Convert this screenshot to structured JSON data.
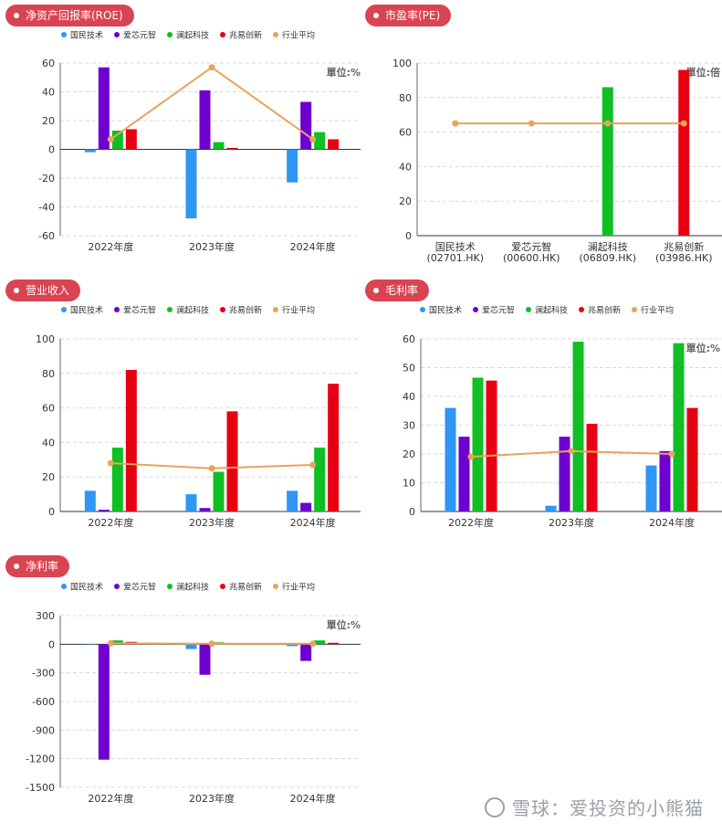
{
  "colors": {
    "国民技术": "#2f96f3",
    "爱芯元智": "#6e00d0",
    "澜起科技": "#0fbf23",
    "兆易创新": "#e60012",
    "行业平均": "#e8a45a",
    "badge": "#d94452"
  },
  "legend": [
    "国民技术",
    "爱芯元智",
    "澜起科技",
    "兆易创新",
    "行业平均"
  ],
  "watermark": "雪球：爱投资的小熊猫",
  "charts": [
    {
      "id": "roe",
      "title": "净资产回报率(ROE)",
      "unit": "單位:%",
      "type": "bar+line",
      "categories": [
        "2022年度",
        "2023年度",
        "2024年度"
      ],
      "ylim": [
        -60,
        60
      ],
      "yticks": [
        60,
        40,
        20,
        0,
        -20,
        -40,
        -60
      ],
      "series": [
        {
          "name": "国民技术",
          "values": [
            -2,
            -48,
            -23
          ]
        },
        {
          "name": "爱芯元智",
          "values": [
            57,
            41,
            33
          ]
        },
        {
          "name": "澜起科技",
          "values": [
            13,
            5,
            12
          ]
        },
        {
          "name": "兆易创新",
          "values": [
            14,
            1,
            7
          ]
        }
      ],
      "line": {
        "name": "行业平均",
        "values": [
          7,
          57,
          7
        ]
      }
    },
    {
      "id": "pe",
      "title": "市盈率(PE)",
      "unit": "單位:倍",
      "type": "bar+line",
      "categories": [
        "国民技术|(02701.HK)",
        "爱芯元智|(00600.HK)",
        "澜起科技|(06809.HK)",
        "兆易创新|(03986.HK)"
      ],
      "ylim": [
        0,
        100
      ],
      "yticks": [
        100,
        80,
        60,
        40,
        20,
        0
      ],
      "bars": [
        {
          "name": "国民技术",
          "value": 0
        },
        {
          "name": "爱芯元智",
          "value": 0
        },
        {
          "name": "澜起科技",
          "value": 86
        },
        {
          "name": "兆易创新",
          "value": 96
        }
      ],
      "line": {
        "name": "行业平均",
        "values": [
          65,
          65,
          65,
          65
        ]
      }
    },
    {
      "id": "revenue",
      "title": "营业收入",
      "unit": "",
      "type": "bar+line",
      "categories": [
        "2022年度",
        "2023年度",
        "2024年度"
      ],
      "ylim": [
        0,
        100
      ],
      "yticks": [
        100,
        80,
        60,
        40,
        20,
        0
      ],
      "series": [
        {
          "name": "国民技术",
          "values": [
            12,
            10,
            12
          ]
        },
        {
          "name": "爱芯元智",
          "values": [
            1,
            2,
            5
          ]
        },
        {
          "name": "澜起科技",
          "values": [
            37,
            23,
            37
          ]
        },
        {
          "name": "兆易创新",
          "values": [
            82,
            58,
            74
          ]
        }
      ],
      "line": {
        "name": "行业平均",
        "values": [
          28,
          25,
          27
        ]
      }
    },
    {
      "id": "gross",
      "title": "毛利率",
      "unit": "單位:%",
      "type": "bar+line",
      "categories": [
        "2022年度",
        "2023年度",
        "2024年度"
      ],
      "ylim": [
        0,
        60
      ],
      "yticks": [
        60,
        50,
        40,
        30,
        20,
        10,
        0
      ],
      "series": [
        {
          "name": "国民技术",
          "values": [
            36,
            2,
            16
          ]
        },
        {
          "name": "爱芯元智",
          "values": [
            26,
            26,
            21
          ]
        },
        {
          "name": "澜起科技",
          "values": [
            46.5,
            59,
            58.5
          ]
        },
        {
          "name": "兆易创新",
          "values": [
            45.5,
            30.5,
            36
          ]
        }
      ],
      "line": {
        "name": "行业平均",
        "values": [
          19,
          21,
          20
        ]
      }
    },
    {
      "id": "net",
      "title": "净利率",
      "unit": "單位:%",
      "type": "bar+line",
      "categories": [
        "2022年度",
        "2023年度",
        "2024年度"
      ],
      "ylim": [
        -1500,
        300
      ],
      "yticks": [
        300,
        0,
        -300,
        -600,
        -900,
        -1200,
        -1500
      ],
      "series": [
        {
          "name": "国民技术",
          "values": [
            -5,
            -50,
            -20
          ]
        },
        {
          "name": "爱芯元智",
          "values": [
            -1210,
            -320,
            -175
          ]
        },
        {
          "name": "澜起科技",
          "values": [
            40,
            20,
            40
          ]
        },
        {
          "name": "兆易创新",
          "values": [
            25,
            5,
            15
          ]
        }
      ],
      "line": {
        "name": "行业平均",
        "values": [
          10,
          5,
          5
        ]
      }
    }
  ]
}
